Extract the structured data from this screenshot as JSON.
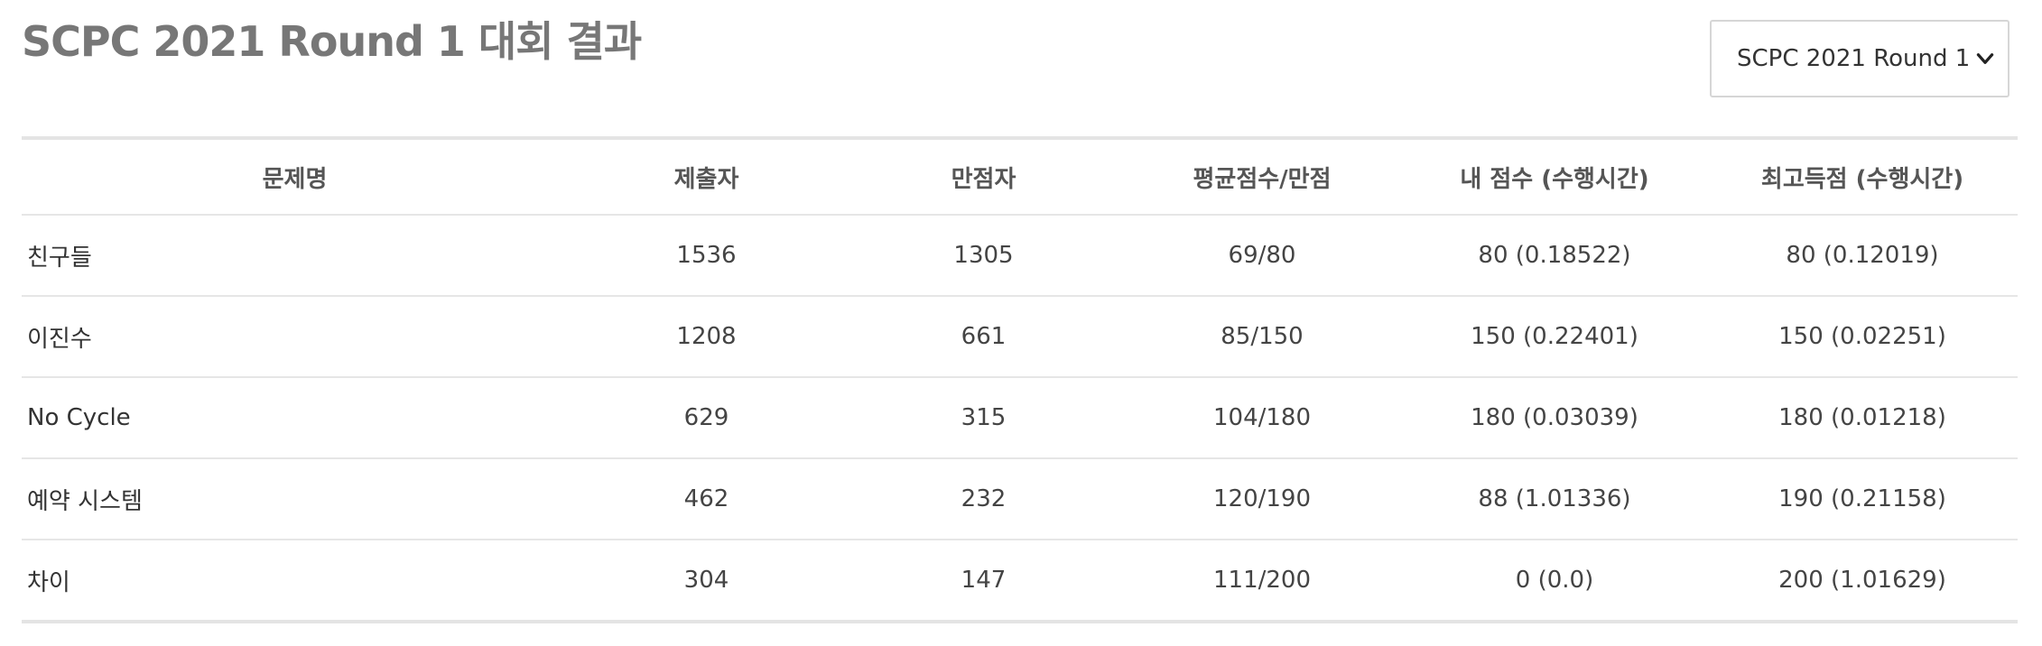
{
  "page": {
    "title": "SCPC 2021 Round 1 대회 결과"
  },
  "round_select": {
    "value": "SCPC 2021 Round 1",
    "icon": "chevron-down-icon"
  },
  "table": {
    "headers": [
      "문제명",
      "제출자",
      "만점자",
      "평균점수/만점",
      "내 점수 (수행시간)",
      "최고득점 (수행시간)"
    ],
    "rows": [
      [
        "친구들",
        "1536",
        "1305",
        "69/80",
        "80 (0.18522)",
        "80 (0.12019)"
      ],
      [
        "이진수",
        "1208",
        "661",
        "85/150",
        "150 (0.22401)",
        "150 (0.02251)"
      ],
      [
        "No Cycle",
        "629",
        "315",
        "104/180",
        "180 (0.03039)",
        "180 (0.01218)"
      ],
      [
        "예약 시스템",
        "462",
        "232",
        "120/190",
        "88 (1.01336)",
        "190 (0.21158)"
      ],
      [
        "차이",
        "304",
        "147",
        "111/200",
        "0 (0.0)",
        "200 (1.01629)"
      ]
    ]
  }
}
